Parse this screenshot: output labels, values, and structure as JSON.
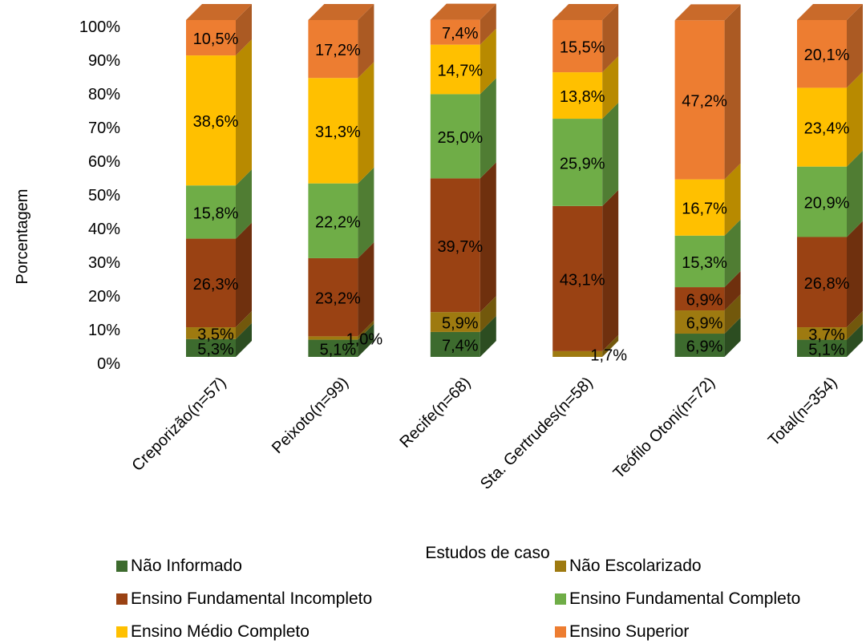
{
  "chart_data": {
    "type": "bar",
    "stacked": true,
    "style": "3d-stacked-100-percent",
    "title": "",
    "xlabel": "Estudos de caso",
    "ylabel": "Porcentagem",
    "ylim": [
      0,
      100
    ],
    "yticks": [
      "0%",
      "10%",
      "20%",
      "30%",
      "40%",
      "50%",
      "60%",
      "70%",
      "80%",
      "90%",
      "100%"
    ],
    "categories": [
      "Creporizão(n=57)",
      "Peixoto(n=99)",
      "Recife(n=68)",
      "Sta. Gertrudes(n=58)",
      "Teófilo Otoni(n=72)",
      "Total(n=354)"
    ],
    "grid": false,
    "legend_position": "bottom",
    "series": [
      {
        "name": "Não Informado",
        "color": "#3d6b2e",
        "values": [
          5.3,
          5.1,
          7.4,
          0,
          6.9,
          5.1
        ],
        "labels": [
          "5,3%",
          "5,1%",
          "7,4%",
          "",
          "6,9%",
          "5,1%"
        ]
      },
      {
        "name": "Não Escolarizado",
        "color": "#9e7a10",
        "values": [
          3.5,
          1.0,
          5.9,
          1.7,
          6.9,
          3.7
        ],
        "labels": [
          "3,5%",
          "1,0%",
          "5,9%",
          "1,7%",
          "6,9%",
          "3,7%"
        ]
      },
      {
        "name": "Ensino Fundamental Incompleto",
        "color": "#9a4213",
        "values": [
          26.3,
          23.2,
          39.7,
          43.1,
          6.9,
          26.8
        ],
        "labels": [
          "26,3%",
          "23,2%",
          "39,7%",
          "43,1%",
          "6,9%",
          "26,8%"
        ]
      },
      {
        "name": "Ensino Fundamental Completo",
        "color": "#6fad47",
        "values": [
          15.8,
          22.2,
          25.0,
          25.9,
          15.3,
          20.9
        ],
        "labels": [
          "15,8%",
          "22,2%",
          "25,0%",
          "25,9%",
          "15,3%",
          "20,9%"
        ]
      },
      {
        "name": "Ensino Médio Completo",
        "color": "#ffc000",
        "values": [
          38.6,
          31.3,
          14.7,
          13.8,
          16.7,
          23.4
        ],
        "labels": [
          "38,6%",
          "31,3%",
          "14,7%",
          "13,8%",
          "16,7%",
          "23,4%"
        ]
      },
      {
        "name": "Ensino Superior",
        "color": "#ed7d31",
        "values": [
          10.5,
          17.2,
          7.4,
          15.5,
          47.2,
          20.1
        ],
        "labels": [
          "10,5%",
          "17,2%",
          "7,4%",
          "15,5%",
          "47,2%",
          "20,1%"
        ]
      }
    ]
  }
}
